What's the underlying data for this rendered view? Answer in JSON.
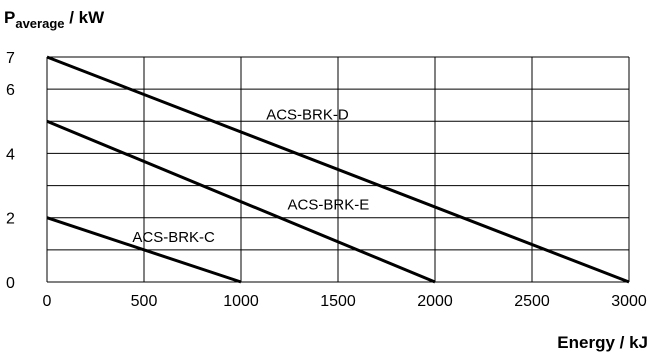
{
  "chart_data": {
    "type": "line",
    "ylabel": {
      "main": "P",
      "sub": "average",
      "unit": " / kW"
    },
    "xlabel": "Energy / kJ",
    "xlim": [
      0,
      3000
    ],
    "ylim": [
      0,
      7
    ],
    "x_ticks": [
      0,
      500,
      1000,
      1500,
      2000,
      2500,
      3000
    ],
    "y_ticks": [
      0,
      2,
      4,
      6,
      7
    ],
    "grid": true,
    "series": [
      {
        "name": "ACS-BRK-D",
        "points": [
          [
            0,
            7
          ],
          [
            3000,
            0
          ]
        ]
      },
      {
        "name": "ACS-BRK-E",
        "points": [
          [
            0,
            5
          ],
          [
            2000,
            0
          ]
        ]
      },
      {
        "name": "ACS-BRK-C",
        "points": [
          [
            0,
            2
          ],
          [
            1000,
            0
          ]
        ]
      }
    ],
    "annotations": [
      {
        "text": "ACS-BRK-D",
        "x": 1130,
        "y": 5.05
      },
      {
        "text": "ACS-BRK-E",
        "x": 1240,
        "y": 2.25
      },
      {
        "text": "ACS-BRK-C",
        "x": 440,
        "y": 1.25
      }
    ]
  }
}
